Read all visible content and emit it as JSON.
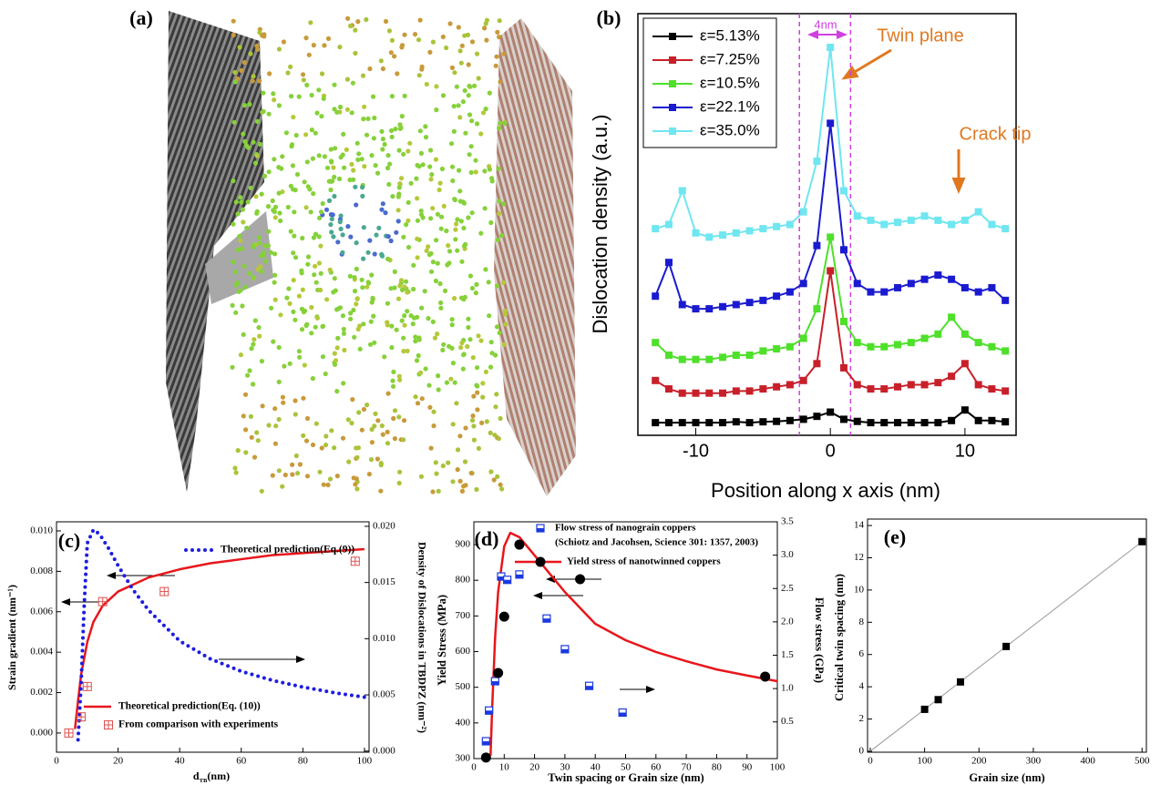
{
  "chart_data": [
    {
      "type": "image",
      "panel_label": "(a)"
    },
    {
      "type": "line",
      "panel_label": "(b)",
      "style": "line-markers",
      "marker": "square",
      "x": [
        -13,
        -12,
        -11,
        -10,
        -9,
        -8,
        -7,
        -6,
        -5,
        -4,
        -3,
        -2,
        -1,
        0,
        1,
        2,
        3,
        4,
        5,
        6,
        7,
        8,
        9,
        10,
        11,
        12,
        13
      ],
      "series": [
        {
          "name": "ε=5.13%",
          "color": "#000000",
          "values": [
            3,
            3,
            3,
            3,
            3,
            3,
            3.2,
            3,
            3.2,
            3.3,
            3.5,
            3.8,
            4.5,
            5.5,
            3.8,
            3.3,
            3,
            3,
            3,
            3,
            3,
            3,
            3.5,
            6,
            3.5,
            3.5,
            3.2
          ]
        },
        {
          "name": "ε=7.25%",
          "color": "#c8202a",
          "values": [
            13,
            11,
            10,
            10,
            10,
            10,
            10.5,
            10.5,
            11,
            11.5,
            12,
            13,
            17,
            39,
            16,
            12,
            11,
            11,
            11.5,
            12,
            12,
            12.5,
            14,
            17,
            12,
            11,
            10.5
          ]
        },
        {
          "name": "ε=10.5%",
          "color": "#4ee02a",
          "values": [
            22,
            19,
            18,
            18,
            18,
            18.5,
            19,
            19,
            20,
            20.5,
            21,
            23,
            30,
            47,
            27,
            22,
            21,
            21,
            21.5,
            22,
            23,
            24,
            28,
            24,
            22,
            21,
            20
          ]
        },
        {
          "name": "ε=22.1%",
          "color": "#1a1ad0",
          "values": [
            33,
            41,
            31,
            30,
            30,
            30.5,
            31,
            31.5,
            32,
            33,
            34,
            36,
            45,
            74,
            44,
            36,
            34,
            34,
            35,
            36,
            37,
            38,
            37,
            35,
            34,
            35,
            32
          ]
        },
        {
          "name": "ε=35.0%",
          "color": "#6fe6f0",
          "values": [
            49,
            50,
            58,
            48,
            47,
            47.5,
            48,
            48.5,
            49,
            49.5,
            50,
            53,
            65,
            92,
            58,
            52,
            51,
            50,
            50.5,
            51,
            52,
            51,
            50,
            51,
            53,
            50,
            49
          ]
        }
      ],
      "xlim": [
        -14.3,
        13.8
      ],
      "xticks": [
        -10,
        0,
        10
      ],
      "ylim": [
        0,
        100
      ],
      "x_label": "Position along x axis (nm)",
      "y_label": "Dislocation density (a.u.)",
      "twin_zone": [
        -2.3,
        1.5
      ],
      "annotations": [
        "4nm",
        "Twin plane",
        "Crack tip"
      ]
    },
    {
      "type": "combo",
      "panel_label": "(c)",
      "x_label": [
        "d",
        "TB",
        "(nm)"
      ],
      "y_label": "Strain gradient (nm⁻¹)",
      "y2_label": "Density of Dislocations in TBDPZ (nm⁻²)",
      "xlim": [
        0,
        101.5
      ],
      "xticks": [
        0,
        20,
        40,
        60,
        80,
        100
      ],
      "ylim": [
        -0.00095,
        0.01045
      ],
      "yticks": [
        {
          "value": 0,
          "label": "0.000"
        },
        0.002,
        0.004,
        0.006,
        0.008,
        {
          "value": 0.01,
          "label": "0.010"
        }
      ],
      "y2lim": [
        -0.0001,
        0.0204
      ],
      "y2ticks": [
        {
          "value": 0,
          "label": "0.000"
        },
        0.005,
        {
          "value": 0.01,
          "label": "0.010"
        },
        0.015,
        {
          "value": 0.02,
          "label": "0.020"
        }
      ],
      "series": [
        {
          "name": "Theoretical prediction(Eq. (10))",
          "color": "#e8161b",
          "style": "line",
          "x": [
            6,
            7,
            8,
            10,
            12,
            15,
            20,
            30,
            40,
            50,
            60,
            70,
            80,
            90,
            100
          ],
          "values": [
            0.0002,
            0.0016,
            0.0029,
            0.0045,
            0.0055,
            0.0063,
            0.007,
            0.0077,
            0.0081,
            0.0084,
            0.0086,
            0.0088,
            0.0089,
            0.009,
            0.0091
          ]
        },
        {
          "name": "Theoretical prediction(Eq.(9))",
          "color": "#1d1de0",
          "style": "dotted",
          "axis": "y2",
          "x": [
            7,
            8,
            9,
            10,
            12,
            14,
            17,
            20,
            25,
            30,
            40,
            50,
            60,
            70,
            80,
            90,
            100
          ],
          "values": [
            0.001,
            0.006,
            0.013,
            0.0185,
            0.0197,
            0.0193,
            0.018,
            0.0165,
            0.0143,
            0.0125,
            0.0098,
            0.0082,
            0.0071,
            0.0063,
            0.0057,
            0.0052,
            0.0048
          ]
        },
        {
          "name": "From comparison with experiments",
          "color": "#e05050",
          "style": "markers",
          "marker": "crossed-square",
          "x": [
            4,
            8,
            10,
            15,
            35,
            97
          ],
          "values": [
            0,
            0.0008,
            0.0023,
            0.0065,
            0.007,
            0.0085
          ]
        }
      ]
    },
    {
      "type": "combo",
      "panel_label": "(d)",
      "x_label": "Twin spacing or Grain size (nm)",
      "y_label": "Yield Stress (MPa)",
      "y2_label": "Flow stress (GPa)",
      "xlim": [
        0,
        100
      ],
      "xticks": [
        0,
        10,
        20,
        30,
        40,
        50,
        60,
        70,
        80,
        90,
        100
      ],
      "ylim": [
        300,
        964
      ],
      "yticks": [
        300,
        400,
        500,
        600,
        700,
        800,
        900
      ],
      "y2lim": [
        -0.05,
        3.5
      ],
      "y2ticks": [
        0.5,
        {
          "value": 1,
          "label": "1.0"
        },
        1.5,
        {
          "value": 2,
          "label": "2.0"
        },
        2.5,
        {
          "value": 3,
          "label": "3.0"
        },
        3.5
      ],
      "series": [
        {
          "color": "#e8161b",
          "style": "line",
          "x": [
            5.5,
            6,
            7,
            8,
            10,
            12,
            15,
            20,
            30,
            40,
            50,
            60,
            70,
            80,
            90,
            100
          ],
          "values": [
            308,
            436,
            640,
            767,
            895,
            933,
            921,
            870,
            767,
            678,
            632,
            599,
            573,
            550,
            533,
            517
          ]
        },
        {
          "name": "Flow stress of nanograin coppers",
          "note": "(Schiotz and Jacohsen, Science 301: 1357, 2003)",
          "color": "#1a3ae0",
          "style": "markers",
          "marker": "half-square",
          "axis": "y2",
          "x": [
            4,
            5,
            7,
            9,
            11,
            15,
            24,
            30,
            38,
            49
          ],
          "values": [
            0.21,
            0.67,
            1.11,
            2.68,
            2.63,
            2.71,
            2.05,
            1.59,
            1.04,
            0.64
          ]
        },
        {
          "name": "Yield stress of nanotwinned coppers",
          "color": "#000000",
          "style": "markers",
          "marker": "circle",
          "x": [
            4,
            8,
            10,
            15,
            35,
            96
          ],
          "values": [
            303,
            540,
            698,
            900,
            803,
            530
          ]
        }
      ]
    },
    {
      "type": "scatter",
      "panel_label": "(e)",
      "x_label": "Grain size (nm)",
      "y_label": "Critical twin spacing (nm)",
      "xlim": [
        -5,
        508
      ],
      "xticks": [
        0,
        100,
        200,
        300,
        400,
        500
      ],
      "ylim": [
        -0.06,
        14.4
      ],
      "yticks": [
        0,
        2,
        4,
        6,
        8,
        10,
        12,
        14
      ],
      "series": [
        {
          "color": "#999999",
          "style": "line",
          "x": [
            0,
            500
          ],
          "values": [
            0,
            13
          ]
        },
        {
          "color": "#000000",
          "style": "markers",
          "marker": "square",
          "x": [
            100,
            125,
            166,
            250,
            500
          ],
          "values": [
            2.6,
            3.2,
            4.3,
            6.5,
            13
          ]
        }
      ]
    }
  ]
}
